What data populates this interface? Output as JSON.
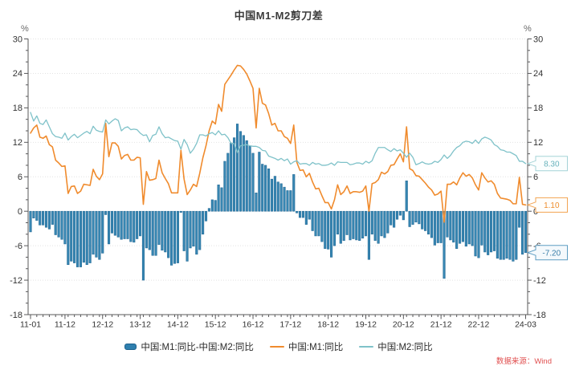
{
  "title": "中国M1-M2剪刀差",
  "y_axis_unit_left": "%",
  "y_axis_unit_right": "%",
  "source_note": "数据来源：Wind",
  "legend": {
    "items": [
      {
        "label": "中国:M1:同比-中国:M2:同比",
        "marker": "bar",
        "color": "#2e7fae"
      },
      {
        "label": "中国:M1:同比",
        "marker": "line",
        "color": "#f08b2d"
      },
      {
        "label": "中国:M2:同比",
        "marker": "line",
        "color": "#7fc2c9"
      }
    ]
  },
  "chart_data": {
    "type": "bar+line",
    "x_freq": "monthly",
    "x_start": "2011-01",
    "x_end": "2024-03",
    "x_tick_labels": [
      "11-01",
      "11-12",
      "12-12",
      "13-12",
      "14-12",
      "15-12",
      "16-12",
      "17-12",
      "18-12",
      "19-12",
      "20-12",
      "21-12",
      "22-12",
      "24-03"
    ],
    "x_tick_indices": [
      0,
      11,
      23,
      35,
      47,
      59,
      71,
      83,
      95,
      107,
      119,
      131,
      143,
      158
    ],
    "ylim": [
      -18,
      30
    ],
    "y_major_step": 6,
    "y_minor_step": 2,
    "grid": "dotted horizontal lines at major ticks",
    "legend_position": "bottom-center",
    "series": [
      {
        "name": "中国:M1:同比-中国:M2:同比",
        "type": "bar",
        "color": "#3786b2",
        "edge_color": "#1c6391",
        "values": [
          -3.6,
          -1.2,
          -1.6,
          -2.4,
          -2.4,
          -2.8,
          -3.1,
          -2.3,
          -4.1,
          -4.5,
          -4.9,
          -5.7,
          -9.3,
          -8.7,
          -9.0,
          -9.7,
          -9.7,
          -8.9,
          -9.3,
          -9.0,
          -7.5,
          -8.0,
          -8.4,
          -7.3,
          -0.6,
          -5.7,
          -3.8,
          -4.2,
          -4.5,
          -4.9,
          -4.8,
          -4.8,
          -5.3,
          -5.4,
          -4.8,
          -4.3,
          -12.0,
          -6.4,
          -6.7,
          -7.7,
          -7.7,
          -5.8,
          -6.8,
          -7.1,
          -8.1,
          -9.4,
          -9.1,
          -9.0,
          -0.2,
          -6.9,
          -8.7,
          -6.4,
          -6.1,
          -7.5,
          -6.7,
          -4.0,
          -1.7,
          0.5,
          2.0,
          1.9,
          4.6,
          4.1,
          8.7,
          10.1,
          11.9,
          12.8,
          15.2,
          13.9,
          13.2,
          12.3,
          11.3,
          10.1,
          3.2,
          10.3,
          8.2,
          8.0,
          7.4,
          5.6,
          6.1,
          5.1,
          4.8,
          4.2,
          3.6,
          3.6,
          6.4,
          -0.3,
          -1.1,
          -1.1,
          -2.3,
          -1.4,
          -3.4,
          -4.3,
          -4.3,
          -5.3,
          -6.5,
          -6.6,
          -8.0,
          -6.0,
          -4.0,
          -5.6,
          -5.1,
          -4.1,
          -5.0,
          -4.8,
          -5.0,
          -5.1,
          -4.7,
          -4.3,
          -8.4,
          -4.0,
          -5.1,
          -5.6,
          -4.3,
          -4.6,
          -3.8,
          -2.4,
          -2.8,
          -1.4,
          -0.7,
          -1.5,
          5.3,
          -2.7,
          -2.3,
          -1.9,
          -2.2,
          -3.1,
          -3.4,
          -4.0,
          -4.6,
          -5.9,
          -5.5,
          -5.5,
          -11.7,
          -4.5,
          -5.0,
          -5.4,
          -6.5,
          -5.6,
          -5.3,
          -6.1,
          -5.7,
          -6.0,
          -7.8,
          -8.1,
          -5.9,
          -7.1,
          -7.6,
          -7.1,
          -6.9,
          -8.2,
          -8.4,
          -8.4,
          -8.2,
          -8.4,
          -8.7,
          -8.4,
          -2.8,
          -7.5,
          -7.2
        ]
      },
      {
        "name": "中国:M1:同比",
        "type": "line",
        "color": "#f08b2d",
        "values": [
          13.6,
          14.5,
          15.0,
          12.9,
          12.7,
          13.1,
          11.6,
          11.2,
          8.9,
          8.4,
          7.8,
          7.9,
          3.1,
          4.3,
          4.4,
          3.1,
          3.5,
          4.7,
          4.6,
          4.5,
          7.3,
          6.1,
          5.5,
          6.5,
          15.3,
          9.5,
          11.9,
          11.9,
          11.3,
          9.1,
          9.7,
          9.9,
          8.9,
          8.9,
          9.4,
          9.3,
          1.2,
          6.9,
          5.4,
          5.5,
          5.7,
          8.9,
          6.7,
          5.7,
          4.8,
          3.2,
          3.2,
          3.2,
          10.6,
          5.6,
          2.9,
          3.7,
          4.7,
          4.3,
          6.6,
          9.3,
          11.4,
          14.0,
          15.7,
          15.2,
          18.6,
          17.4,
          22.1,
          22.9,
          23.7,
          24.6,
          25.4,
          25.3,
          24.7,
          23.9,
          22.7,
          21.4,
          14.5,
          21.4,
          18.8,
          18.5,
          17.0,
          15.0,
          15.3,
          14.0,
          14.0,
          13.0,
          12.7,
          11.8,
          15.0,
          8.5,
          7.1,
          7.2,
          6.0,
          6.6,
          5.1,
          3.9,
          4.0,
          2.7,
          1.5,
          1.5,
          0.4,
          2.0,
          4.6,
          2.9,
          3.4,
          4.4,
          3.1,
          3.4,
          3.4,
          3.3,
          3.5,
          4.4,
          0.0,
          4.8,
          5.0,
          5.5,
          6.8,
          6.5,
          6.9,
          8.0,
          8.1,
          9.1,
          10.0,
          8.6,
          14.7,
          7.4,
          7.1,
          6.2,
          6.1,
          5.5,
          4.9,
          4.2,
          3.7,
          2.8,
          3.0,
          3.5,
          -1.9,
          4.7,
          4.7,
          5.1,
          4.6,
          5.8,
          6.7,
          6.1,
          6.4,
          5.8,
          4.6,
          3.7,
          6.7,
          5.8,
          5.1,
          5.3,
          4.7,
          3.1,
          2.3,
          2.2,
          2.1,
          1.9,
          1.3,
          1.3,
          5.9,
          1.2,
          1.1
        ]
      },
      {
        "name": "中国:M2:同比",
        "type": "line",
        "color": "#7fc2c9",
        "values": [
          17.2,
          15.7,
          16.6,
          15.3,
          15.1,
          15.9,
          14.7,
          13.5,
          13.0,
          12.9,
          12.7,
          13.6,
          12.4,
          13.0,
          13.4,
          12.8,
          13.2,
          13.6,
          13.9,
          13.5,
          14.8,
          14.1,
          13.9,
          13.8,
          15.9,
          15.2,
          15.7,
          16.1,
          15.8,
          14.0,
          14.5,
          14.7,
          14.2,
          14.3,
          14.2,
          13.6,
          13.2,
          13.3,
          12.1,
          13.2,
          13.4,
          14.7,
          13.5,
          12.8,
          12.9,
          12.6,
          12.3,
          12.2,
          10.8,
          12.5,
          11.6,
          10.1,
          10.8,
          11.8,
          13.3,
          13.3,
          13.1,
          13.5,
          13.7,
          13.3,
          14.0,
          13.3,
          13.4,
          12.8,
          11.8,
          11.8,
          10.2,
          11.4,
          11.5,
          11.6,
          11.4,
          11.3,
          11.3,
          11.1,
          10.6,
          10.5,
          9.6,
          9.4,
          9.2,
          8.9,
          9.2,
          8.8,
          9.1,
          8.2,
          8.6,
          8.8,
          8.2,
          8.3,
          8.3,
          8.0,
          8.5,
          8.2,
          8.3,
          8.0,
          8.0,
          8.1,
          8.4,
          8.0,
          8.6,
          8.5,
          8.5,
          8.5,
          8.1,
          8.2,
          8.4,
          8.4,
          8.2,
          8.7,
          8.4,
          8.8,
          10.1,
          11.1,
          11.1,
          11.1,
          10.7,
          10.4,
          10.9,
          10.5,
          10.7,
          10.1,
          9.4,
          10.1,
          9.4,
          8.1,
          8.3,
          8.6,
          8.3,
          8.2,
          8.3,
          8.7,
          8.5,
          9.0,
          9.8,
          9.2,
          9.7,
          10.5,
          11.1,
          11.4,
          12.0,
          12.2,
          12.1,
          11.8,
          12.4,
          11.8,
          12.6,
          12.9,
          12.7,
          12.4,
          11.6,
          11.3,
          10.7,
          10.6,
          10.3,
          10.3,
          10.0,
          9.7,
          8.7,
          8.7,
          8.3
        ]
      }
    ],
    "end_value_labels": [
      {
        "series": "中国:M2:同比",
        "text": "8.30",
        "value": 8.3,
        "text_color": "#67b2bc",
        "border_color": "#a5d3d7",
        "fill": "#fbfefe"
      },
      {
        "series": "中国:M1:同比",
        "text": "1.10",
        "value": 1.1,
        "text_color": "#ee8e2d",
        "border_color": "#f2a452",
        "fill": "#fffefb"
      },
      {
        "series": "中国:M1:同比-中国:M2:同比",
        "text": "-7.20",
        "value": -7.2,
        "text_color": "#3a7fa9",
        "border_color": "#5e9dc2",
        "fill": "#f4f9fc"
      }
    ]
  }
}
